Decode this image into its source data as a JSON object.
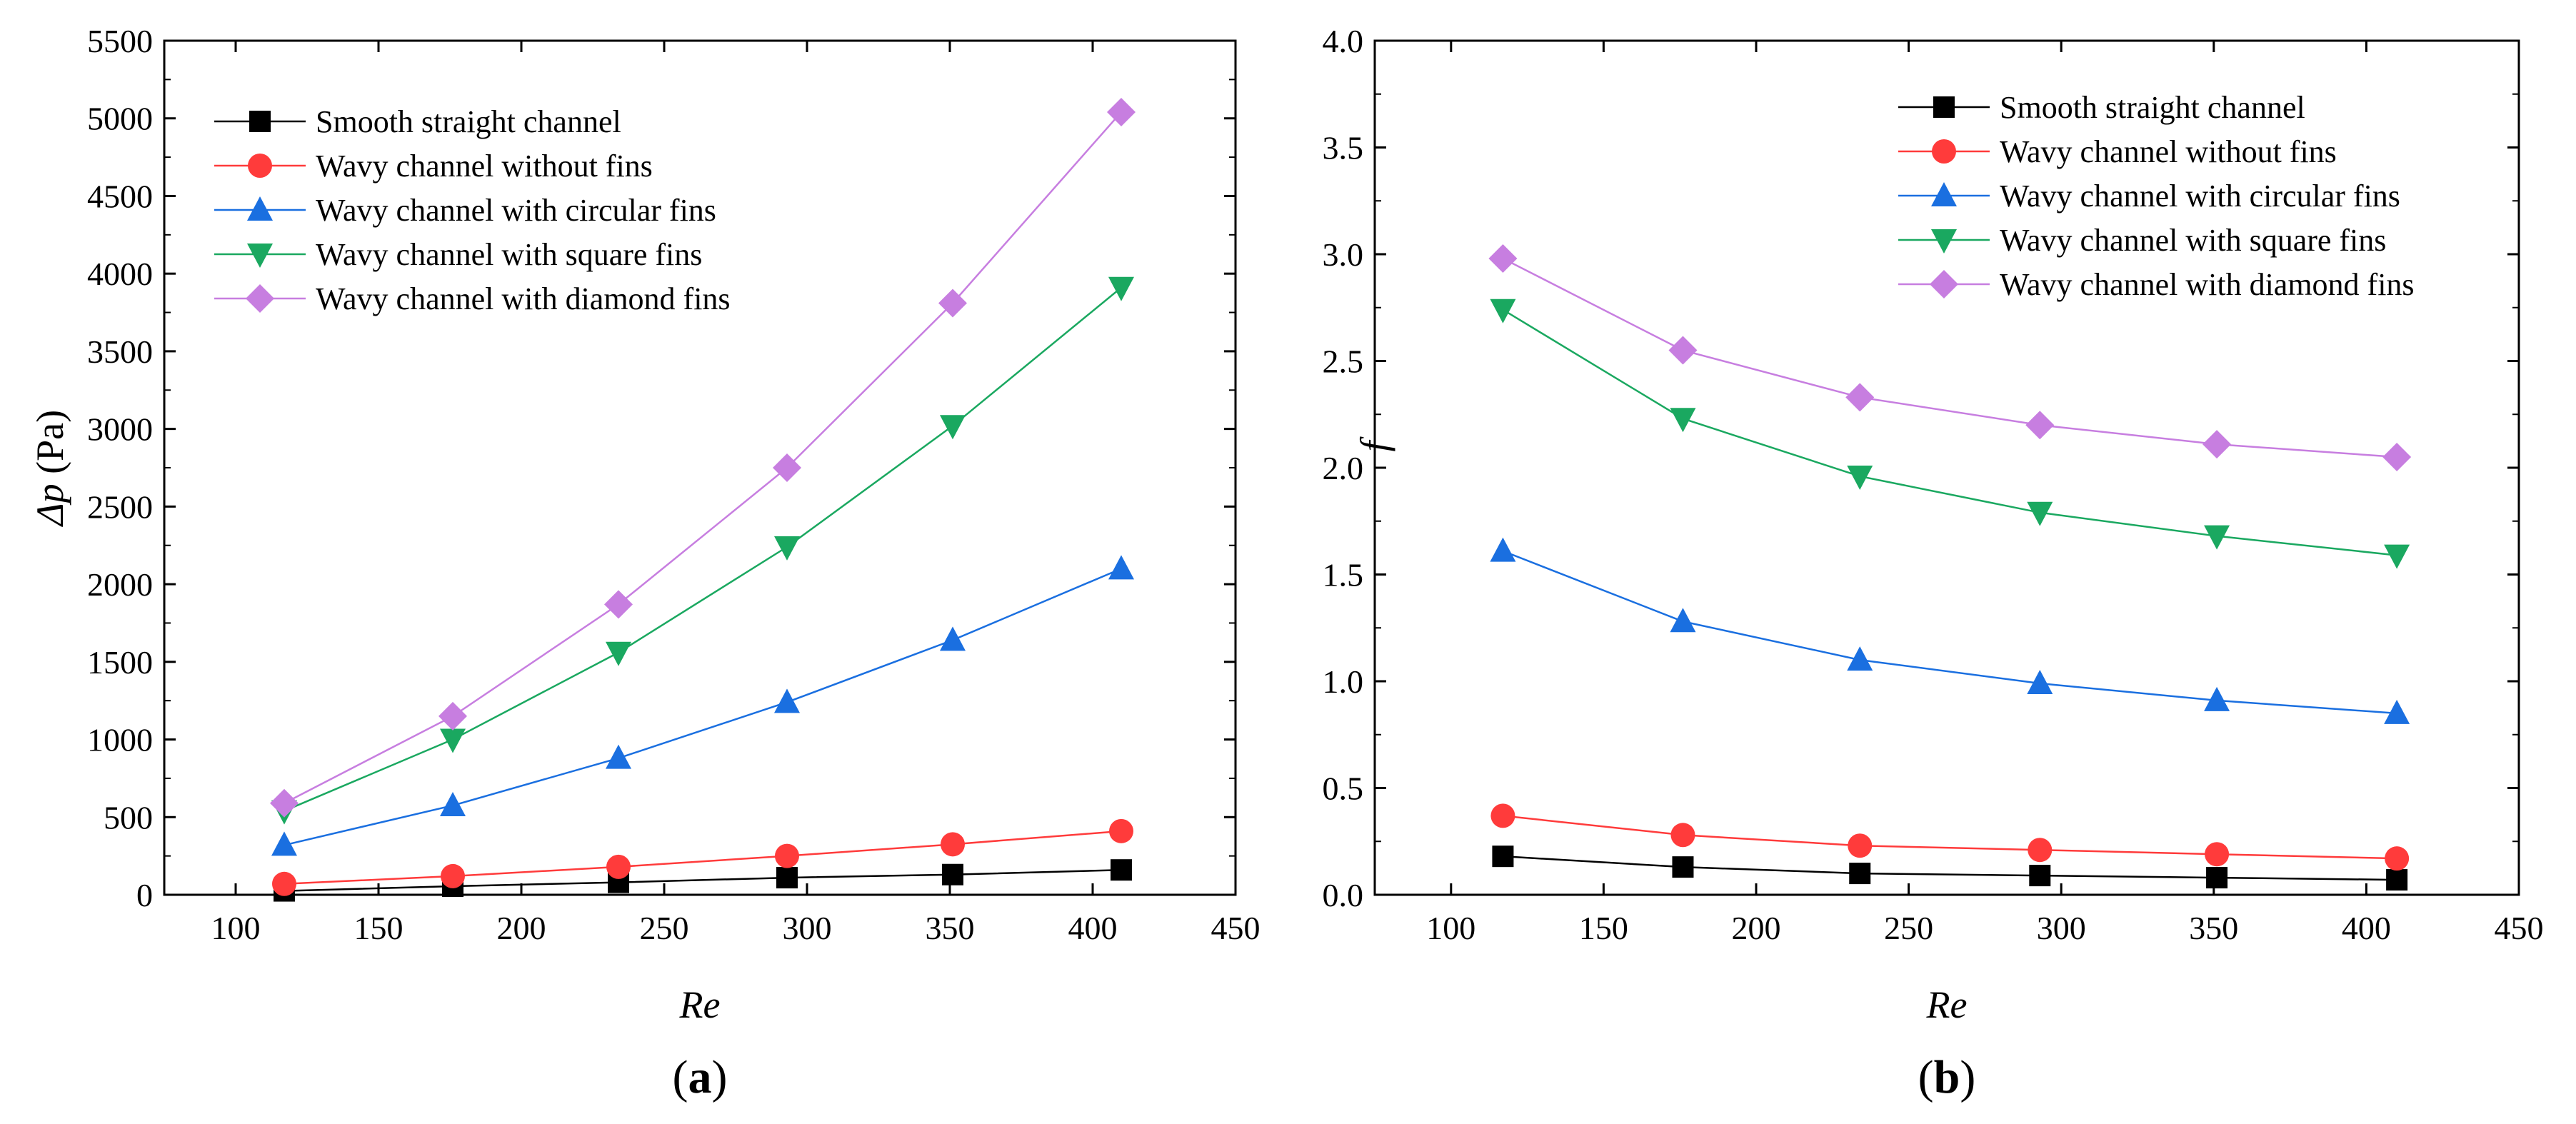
{
  "figure": {
    "background": "#ffffff",
    "series_styles": [
      {
        "color": "#000000",
        "marker": "square"
      },
      {
        "color": "#ff3b3b",
        "marker": "circle"
      },
      {
        "color": "#1a6fe0",
        "marker": "triangle-up"
      },
      {
        "color": "#1aa860",
        "marker": "triangle-down"
      },
      {
        "color": "#c77ee0",
        "marker": "diamond"
      }
    ]
  },
  "chart_data": [
    {
      "type": "line",
      "panel_label": {
        "open": "(",
        "letter": "a",
        "close": ")"
      },
      "xlabel": "Re",
      "ylabel": {
        "symbol": "Δp",
        "unit": " (Pa)"
      },
      "xlim": [
        75,
        450
      ],
      "ylim": [
        0,
        5500
      ],
      "xticks": [
        100,
        150,
        200,
        250,
        300,
        350,
        400,
        450
      ],
      "yticks": [
        0,
        500,
        1000,
        1500,
        2000,
        2500,
        3000,
        3500,
        4000,
        4500,
        5000,
        5500
      ],
      "legend_position": "top-left",
      "x": [
        117,
        176,
        234,
        293,
        351,
        410
      ],
      "series": [
        {
          "name": "Smooth straight channel",
          "values": [
            25,
            55,
            80,
            110,
            130,
            160
          ]
        },
        {
          "name": "Wavy channel without fins",
          "values": [
            70,
            120,
            180,
            250,
            325,
            410
          ]
        },
        {
          "name": "Wavy channel with circular fins",
          "values": [
            320,
            575,
            880,
            1240,
            1640,
            2100
          ]
        },
        {
          "name": "Wavy channel with square fins",
          "values": [
            540,
            1000,
            1560,
            2240,
            3020,
            3910
          ]
        },
        {
          "name": "Wavy channel with diamond fins",
          "values": [
            590,
            1150,
            1870,
            2750,
            3810,
            5040
          ]
        }
      ]
    },
    {
      "type": "line",
      "panel_label": {
        "open": "(",
        "letter": "b",
        "close": ")"
      },
      "xlabel": "Re",
      "ylabel": {
        "symbol": "f",
        "unit": ""
      },
      "xlim": [
        75,
        450
      ],
      "ylim": [
        0,
        4.0
      ],
      "xticks": [
        100,
        150,
        200,
        250,
        300,
        350,
        400,
        450
      ],
      "yticks": [
        "0.0",
        "0.5",
        "1.0",
        "1.5",
        "2.0",
        "2.5",
        "3.0",
        "3.5",
        "4.0"
      ],
      "legend_position": "top-center",
      "x": [
        117,
        176,
        234,
        293,
        351,
        410
      ],
      "series": [
        {
          "name": "Smooth straight channel",
          "values": [
            0.18,
            0.13,
            0.1,
            0.09,
            0.08,
            0.07
          ]
        },
        {
          "name": "Wavy channel without fins",
          "values": [
            0.37,
            0.28,
            0.23,
            0.21,
            0.19,
            0.17
          ]
        },
        {
          "name": "Wavy channel with circular fins",
          "values": [
            1.61,
            1.28,
            1.1,
            0.99,
            0.91,
            0.85
          ]
        },
        {
          "name": "Wavy channel with square fins",
          "values": [
            2.74,
            2.23,
            1.96,
            1.79,
            1.68,
            1.59
          ]
        },
        {
          "name": "Wavy channel with diamond fins",
          "values": [
            2.98,
            2.55,
            2.33,
            2.2,
            2.11,
            2.05
          ]
        }
      ]
    }
  ]
}
